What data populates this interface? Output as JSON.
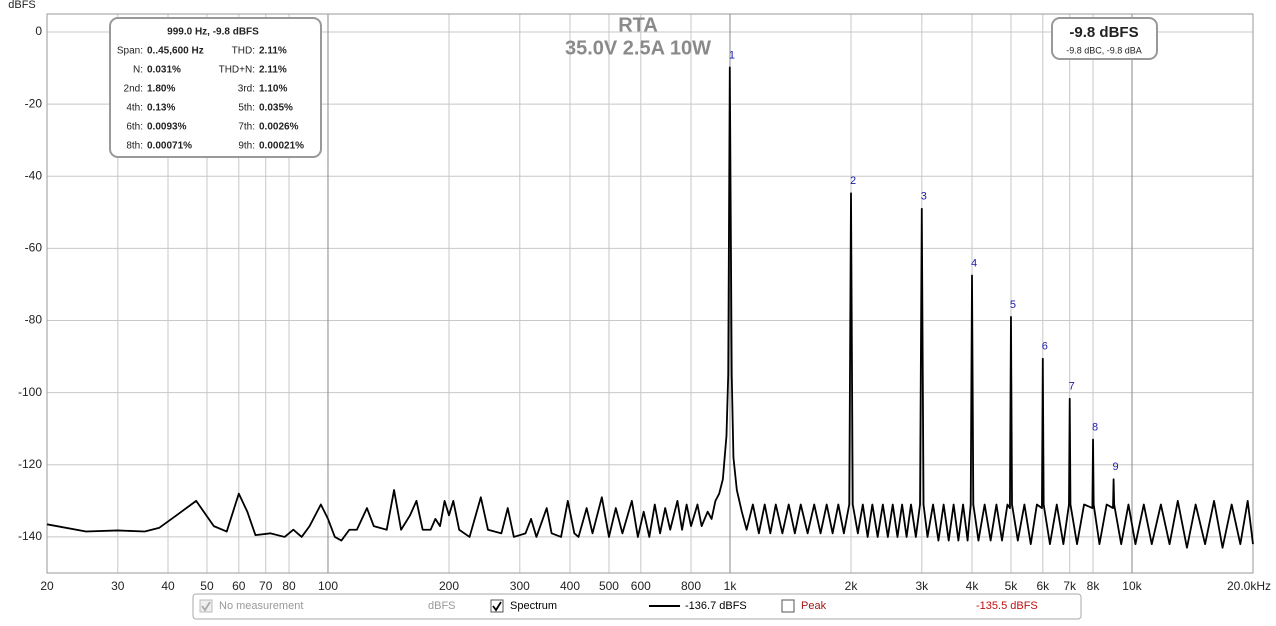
{
  "chart_data": {
    "type": "line",
    "title": "RTA",
    "subtitle": "35.0V 2.5A 10W",
    "y_label": "dBFS",
    "x_log": true,
    "grid": true,
    "xlim": [
      20,
      20000
    ],
    "ylim": [
      -150,
      5
    ],
    "xticks": [
      20,
      30,
      40,
      50,
      60,
      70,
      80,
      100,
      200,
      300,
      400,
      500,
      600,
      800,
      {
        "value": 1000,
        "label": "1k"
      },
      {
        "value": 2000,
        "label": "2k"
      },
      {
        "value": 3000,
        "label": "3k"
      },
      {
        "value": 4000,
        "label": "4k"
      },
      {
        "value": 5000,
        "label": "5k"
      },
      {
        "value": 6000,
        "label": "6k"
      },
      {
        "value": 7000,
        "label": "7k"
      },
      {
        "value": 8000,
        "label": "8k"
      },
      {
        "value": 10000,
        "label": "10k"
      },
      {
        "value": 20000,
        "label": "20.0kHz"
      }
    ],
    "yticks": [
      0,
      -20,
      -40,
      -60,
      -80,
      -100,
      -120,
      -140
    ],
    "series": [
      {
        "name": "Spectrum",
        "color": "#000000",
        "x": [
          20,
          25,
          30,
          35,
          38,
          42,
          47,
          52,
          56,
          60,
          63,
          66,
          72,
          78,
          82,
          86,
          90,
          96,
          100,
          104,
          108,
          113,
          118,
          125,
          130,
          140,
          146,
          152,
          160,
          166,
          172,
          180,
          185,
          190,
          195,
          200,
          205,
          212,
          225,
          240,
          250,
          270,
          280,
          290,
          310,
          320,
          330,
          350,
          360,
          380,
          395,
          410,
          420,
          440,
          455,
          480,
          500,
          520,
          540,
          570,
          590,
          610,
          630,
          650,
          670,
          690,
          710,
          740,
          760,
          780,
          800,
          830,
          850,
          880,
          900,
          920,
          940,
          960,
          980,
          990,
          999,
          1010,
          1020,
          1040,
          1070,
          1100,
          1140,
          1180,
          1220,
          1260,
          1300,
          1350,
          1400,
          1450,
          1500,
          1560,
          1620,
          1680,
          1740,
          1800,
          1860,
          1920,
          1980,
          2000,
          2020,
          2080,
          2140,
          2200,
          2260,
          2330,
          2400,
          2470,
          2540,
          2610,
          2680,
          2750,
          2820,
          2900,
          2970,
          3000,
          3030,
          3100,
          3200,
          3300,
          3400,
          3500,
          3600,
          3700,
          3800,
          3900,
          3970,
          4000,
          4030,
          4150,
          4300,
          4450,
          4600,
          4750,
          4900,
          4970,
          5000,
          5030,
          5200,
          5400,
          5600,
          5800,
          5970,
          6000,
          6030,
          6250,
          6500,
          6750,
          6970,
          7000,
          7030,
          7300,
          7600,
          7970,
          8000,
          8030,
          8300,
          8650,
          8970,
          9000,
          9030,
          9400,
          9800,
          10200,
          10700,
          11200,
          11800,
          12400,
          13000,
          13700,
          14400,
          15200,
          16000,
          16800,
          17700,
          18600,
          19400,
          20000
        ],
        "values": [
          -136.5,
          -138.5,
          -138.2,
          -138.5,
          -137.5,
          -134,
          -130,
          -137,
          -138.5,
          -128,
          -133,
          -139.5,
          -139,
          -140,
          -138,
          -140,
          -137,
          -131,
          -135,
          -140,
          -141,
          -138,
          -138,
          -132,
          -137,
          -138,
          -127,
          -138,
          -134,
          -130,
          -138,
          -138,
          -135,
          -137,
          -130,
          -134,
          -130,
          -138,
          -140,
          -129,
          -138,
          -139,
          -132,
          -140,
          -139,
          -135,
          -140,
          -132,
          -139,
          -140,
          -130,
          -139,
          -140,
          -132,
          -139,
          -129,
          -140,
          -132,
          -139,
          -130,
          -140,
          -133,
          -140,
          -131,
          -139,
          -132,
          -138,
          -130,
          -138,
          -131,
          -137,
          -131,
          -137,
          -133,
          -135,
          -130,
          -128,
          -124,
          -112,
          -95,
          -9.8,
          -95,
          -118,
          -127,
          -133,
          -138,
          -131,
          -139,
          -131,
          -139,
          -131,
          -139,
          -131,
          -139,
          -131,
          -139,
          -131,
          -139,
          -131,
          -139,
          -131,
          -139,
          -131,
          -44.7,
          -131,
          -139,
          -131,
          -140,
          -131,
          -140,
          -131,
          -140,
          -131,
          -140,
          -131,
          -140,
          -131,
          -140,
          -131,
          -49,
          -131,
          -140,
          -131,
          -141,
          -131,
          -141,
          -131,
          -141,
          -131,
          -141,
          -131,
          -67.5,
          -131,
          -141,
          -131,
          -141,
          -131,
          -141,
          -131,
          -132,
          -79,
          -131,
          -141,
          -131,
          -142,
          -131,
          -132,
          -90.6,
          -131,
          -142,
          -131,
          -142,
          -131,
          -101.7,
          -131,
          -142,
          -131,
          -132,
          -113,
          -131,
          -142,
          -131,
          -132,
          -124,
          -131,
          -142,
          -131,
          -142,
          -131,
          -142,
          -131,
          -142,
          -130,
          -143,
          -131,
          -142,
          -130,
          -143,
          -131,
          -142,
          -130,
          -142
        ]
      }
    ],
    "harmonics": [
      {
        "label": "1",
        "x": 1000,
        "y": -9.8
      },
      {
        "label": "2",
        "x": 2000,
        "y": -44.7
      },
      {
        "label": "3",
        "x": 3000,
        "y": -49
      },
      {
        "label": "4",
        "x": 4000,
        "y": -67.5
      },
      {
        "label": "5",
        "x": 5000,
        "y": -79
      },
      {
        "label": "6",
        "x": 6000,
        "y": -90.6
      },
      {
        "label": "7",
        "x": 7000,
        "y": -101.7
      },
      {
        "label": "8",
        "x": 8000,
        "y": -113
      },
      {
        "label": "9",
        "x": 9000,
        "y": -124
      }
    ],
    "stats_box": {
      "header": "999.0 Hz, -9.8 dBFS",
      "rows": [
        [
          "Span:",
          "0..45,600 Hz",
          "THD:",
          "2.11%"
        ],
        [
          "N:",
          "0.031%",
          "THD+N:",
          "2.11%"
        ],
        [
          "2nd:",
          "1.80%",
          "3rd:",
          "1.10%"
        ],
        [
          "4th:",
          "0.13%",
          "5th:",
          "0.035%"
        ],
        [
          "6th:",
          "0.0093%",
          "7th:",
          "0.0026%"
        ],
        [
          "8th:",
          "0.00071%",
          "9th:",
          "0.00021%"
        ]
      ]
    },
    "level_box": {
      "main": "-9.8 dBFS",
      "sub": "-9.8 dBC, -9.8 dBA"
    },
    "legend_rows": [
      {
        "name": "No measurement",
        "value": "dBFS",
        "checked": true,
        "enabled": false
      },
      {
        "value": "-136.7 dBFS",
        "checked": true,
        "enabled": true
      },
      {
        "name": "Peak",
        "value": "-135.5 dBFS",
        "checked": false,
        "enabled": true,
        "color": "#a01818"
      }
    ]
  }
}
